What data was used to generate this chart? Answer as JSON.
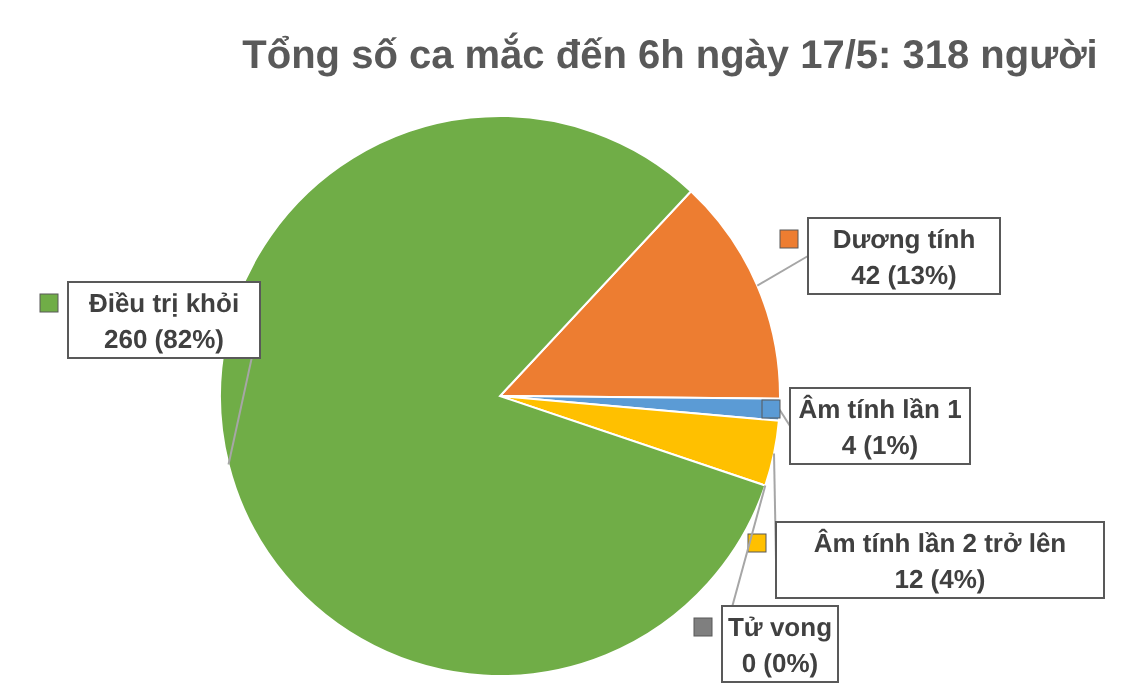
{
  "chart_data": {
    "type": "pie",
    "title": "Tổng số ca mắc đến 6h ngày 17/5: 318 người",
    "categories": [
      "Dương tính",
      "Âm tính lần 1",
      "Âm tính lần 2 trở lên",
      "Tử vong",
      "Điều trị khỏi"
    ],
    "values": [
      42,
      4,
      12,
      0,
      260
    ],
    "value_labels": [
      "42 (13%)",
      "4 (1%)",
      "12 (4%)",
      "0 (0%)",
      "260 (82%)"
    ],
    "colors": [
      "#ed7d31",
      "#5b9bd5",
      "#ffc000",
      "#7f7f7f",
      "#70ad47"
    ],
    "legend": "right"
  }
}
